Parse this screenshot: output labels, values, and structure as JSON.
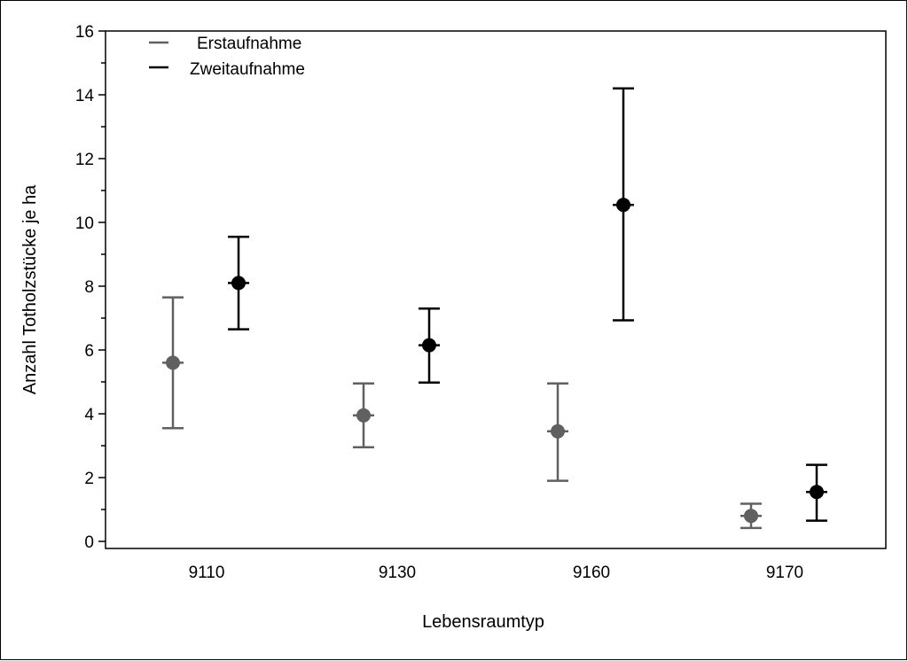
{
  "chart_data": {
    "type": "scatter",
    "title": "",
    "xlabel": "Lebensraumtyp",
    "ylabel": "Anzahl Totholzstücke je ha",
    "categories": [
      "9110",
      "9130",
      "9160",
      "9170"
    ],
    "ylim": [
      0,
      16
    ],
    "yticks": [
      "0",
      "2",
      "4",
      "6",
      "8",
      "10",
      "12",
      "14",
      "16"
    ],
    "grid": false,
    "legend_position": "top-left",
    "series": [
      {
        "name": "Erstaufnahme",
        "color": "#606060",
        "values": [
          5.6,
          3.95,
          3.45,
          0.8
        ],
        "lower": [
          3.55,
          2.95,
          1.9,
          0.42
        ],
        "upper": [
          7.65,
          4.95,
          4.95,
          1.18
        ]
      },
      {
        "name": "Zweitaufnahme",
        "color": "#000000",
        "values": [
          8.1,
          6.15,
          10.55,
          1.55
        ],
        "lower": [
          6.65,
          4.98,
          6.93,
          0.65
        ],
        "upper": [
          9.55,
          7.3,
          14.2,
          2.4
        ]
      }
    ]
  }
}
